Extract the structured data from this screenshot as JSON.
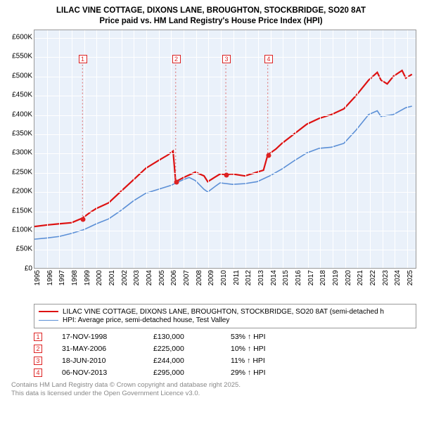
{
  "title": {
    "line1": "LILAC VINE COTTAGE, DIXONS LANE, BROUGHTON, STOCKBRIDGE, SO20 8AT",
    "line2": "Price paid vs. HM Land Registry's House Price Index (HPI)"
  },
  "chart": {
    "type": "line",
    "background_color": "#eaf1fa",
    "grid_color": "#ffffff",
    "x": {
      "min": 1995,
      "max": 2025.8,
      "ticks": [
        1995,
        1996,
        1997,
        1998,
        1999,
        2000,
        2001,
        2002,
        2003,
        2004,
        2005,
        2006,
        2007,
        2008,
        2009,
        2010,
        2011,
        2012,
        2013,
        2014,
        2015,
        2016,
        2017,
        2018,
        2019,
        2020,
        2021,
        2022,
        2023,
        2024,
        2025
      ],
      "label_fontsize": 10
    },
    "y": {
      "min": 0,
      "max": 620000,
      "ticks": [
        0,
        50000,
        100000,
        150000,
        200000,
        250000,
        300000,
        350000,
        400000,
        450000,
        500000,
        550000,
        600000
      ],
      "tick_labels": [
        "£0",
        "£50K",
        "£100K",
        "£150K",
        "£200K",
        "£250K",
        "£300K",
        "£350K",
        "£400K",
        "£450K",
        "£500K",
        "£550K",
        "£600K"
      ],
      "label_fontsize": 10
    },
    "series": [
      {
        "name": "cottage",
        "color": "#dd1111",
        "width": 2.2,
        "points": [
          [
            1995,
            108000
          ],
          [
            1996,
            112000
          ],
          [
            1997,
            115000
          ],
          [
            1998,
            118000
          ],
          [
            1998.88,
            130000
          ],
          [
            1999.5,
            145000
          ],
          [
            2000,
            155000
          ],
          [
            2001,
            170000
          ],
          [
            2002,
            200000
          ],
          [
            2003,
            230000
          ],
          [
            2004,
            260000
          ],
          [
            2005,
            280000
          ],
          [
            2005.8,
            295000
          ],
          [
            2006.2,
            305000
          ],
          [
            2006.41,
            225000
          ],
          [
            2007,
            235000
          ],
          [
            2008,
            250000
          ],
          [
            2008.7,
            240000
          ],
          [
            2009,
            225000
          ],
          [
            2009.5,
            235000
          ],
          [
            2010,
            245000
          ],
          [
            2010.46,
            244000
          ],
          [
            2011,
            245000
          ],
          [
            2012,
            240000
          ],
          [
            2013,
            250000
          ],
          [
            2013.5,
            255000
          ],
          [
            2013.85,
            295000
          ],
          [
            2014.5,
            310000
          ],
          [
            2015,
            325000
          ],
          [
            2016,
            350000
          ],
          [
            2017,
            375000
          ],
          [
            2018,
            390000
          ],
          [
            2019,
            400000
          ],
          [
            2020,
            415000
          ],
          [
            2021,
            450000
          ],
          [
            2022,
            490000
          ],
          [
            2022.7,
            510000
          ],
          [
            2023,
            490000
          ],
          [
            2023.5,
            480000
          ],
          [
            2024,
            500000
          ],
          [
            2024.7,
            515000
          ],
          [
            2025,
            495000
          ],
          [
            2025.5,
            505000
          ]
        ]
      },
      {
        "name": "hpi",
        "color": "#5b8fd6",
        "width": 1.6,
        "points": [
          [
            1995,
            75000
          ],
          [
            1996,
            78000
          ],
          [
            1997,
            82000
          ],
          [
            1998,
            90000
          ],
          [
            1999,
            100000
          ],
          [
            2000,
            115000
          ],
          [
            2001,
            128000
          ],
          [
            2002,
            150000
          ],
          [
            2003,
            175000
          ],
          [
            2004,
            195000
          ],
          [
            2005,
            205000
          ],
          [
            2006,
            215000
          ],
          [
            2007,
            230000
          ],
          [
            2007.5,
            236000
          ],
          [
            2008,
            228000
          ],
          [
            2008.7,
            205000
          ],
          [
            2009,
            198000
          ],
          [
            2009.7,
            215000
          ],
          [
            2010,
            222000
          ],
          [
            2011,
            218000
          ],
          [
            2012,
            220000
          ],
          [
            2013,
            225000
          ],
          [
            2014,
            240000
          ],
          [
            2015,
            258000
          ],
          [
            2016,
            280000
          ],
          [
            2017,
            300000
          ],
          [
            2018,
            312000
          ],
          [
            2019,
            315000
          ],
          [
            2020,
            325000
          ],
          [
            2021,
            360000
          ],
          [
            2022,
            400000
          ],
          [
            2022.7,
            410000
          ],
          [
            2023,
            395000
          ],
          [
            2024,
            400000
          ],
          [
            2025,
            418000
          ],
          [
            2025.5,
            422000
          ]
        ]
      }
    ],
    "event_markers": [
      {
        "n": "1",
        "x": 1998.88,
        "y": 130000,
        "label_y": 545000
      },
      {
        "n": "2",
        "x": 2006.41,
        "y": 225000,
        "label_y": 545000
      },
      {
        "n": "3",
        "x": 2010.46,
        "y": 244000,
        "label_y": 545000
      },
      {
        "n": "4",
        "x": 2013.85,
        "y": 295000,
        "label_y": 545000
      }
    ]
  },
  "legend_color_border": "#999999",
  "legend": [
    {
      "color": "#dd1111",
      "width": 2.2,
      "label": "LILAC VINE COTTAGE, DIXONS LANE, BROUGHTON, STOCKBRIDGE, SO20 8AT (semi-detached h"
    },
    {
      "color": "#5b8fd6",
      "width": 1.6,
      "label": "HPI: Average price, semi-detached house, Test Valley"
    }
  ],
  "events": [
    {
      "n": "1",
      "date": "17-NOV-1998",
      "price": "£130,000",
      "pct": "53% ↑ HPI"
    },
    {
      "n": "2",
      "date": "31-MAY-2006",
      "price": "£225,000",
      "pct": "10% ↑ HPI"
    },
    {
      "n": "3",
      "date": "18-JUN-2010",
      "price": "£244,000",
      "pct": "11% ↑ HPI"
    },
    {
      "n": "4",
      "date": "06-NOV-2013",
      "price": "£295,000",
      "pct": "29% ↑ HPI"
    }
  ],
  "footer": {
    "line1": "Contains HM Land Registry data © Crown copyright and database right 2025.",
    "line2": "This data is licensed under the Open Government Licence v3.0."
  }
}
